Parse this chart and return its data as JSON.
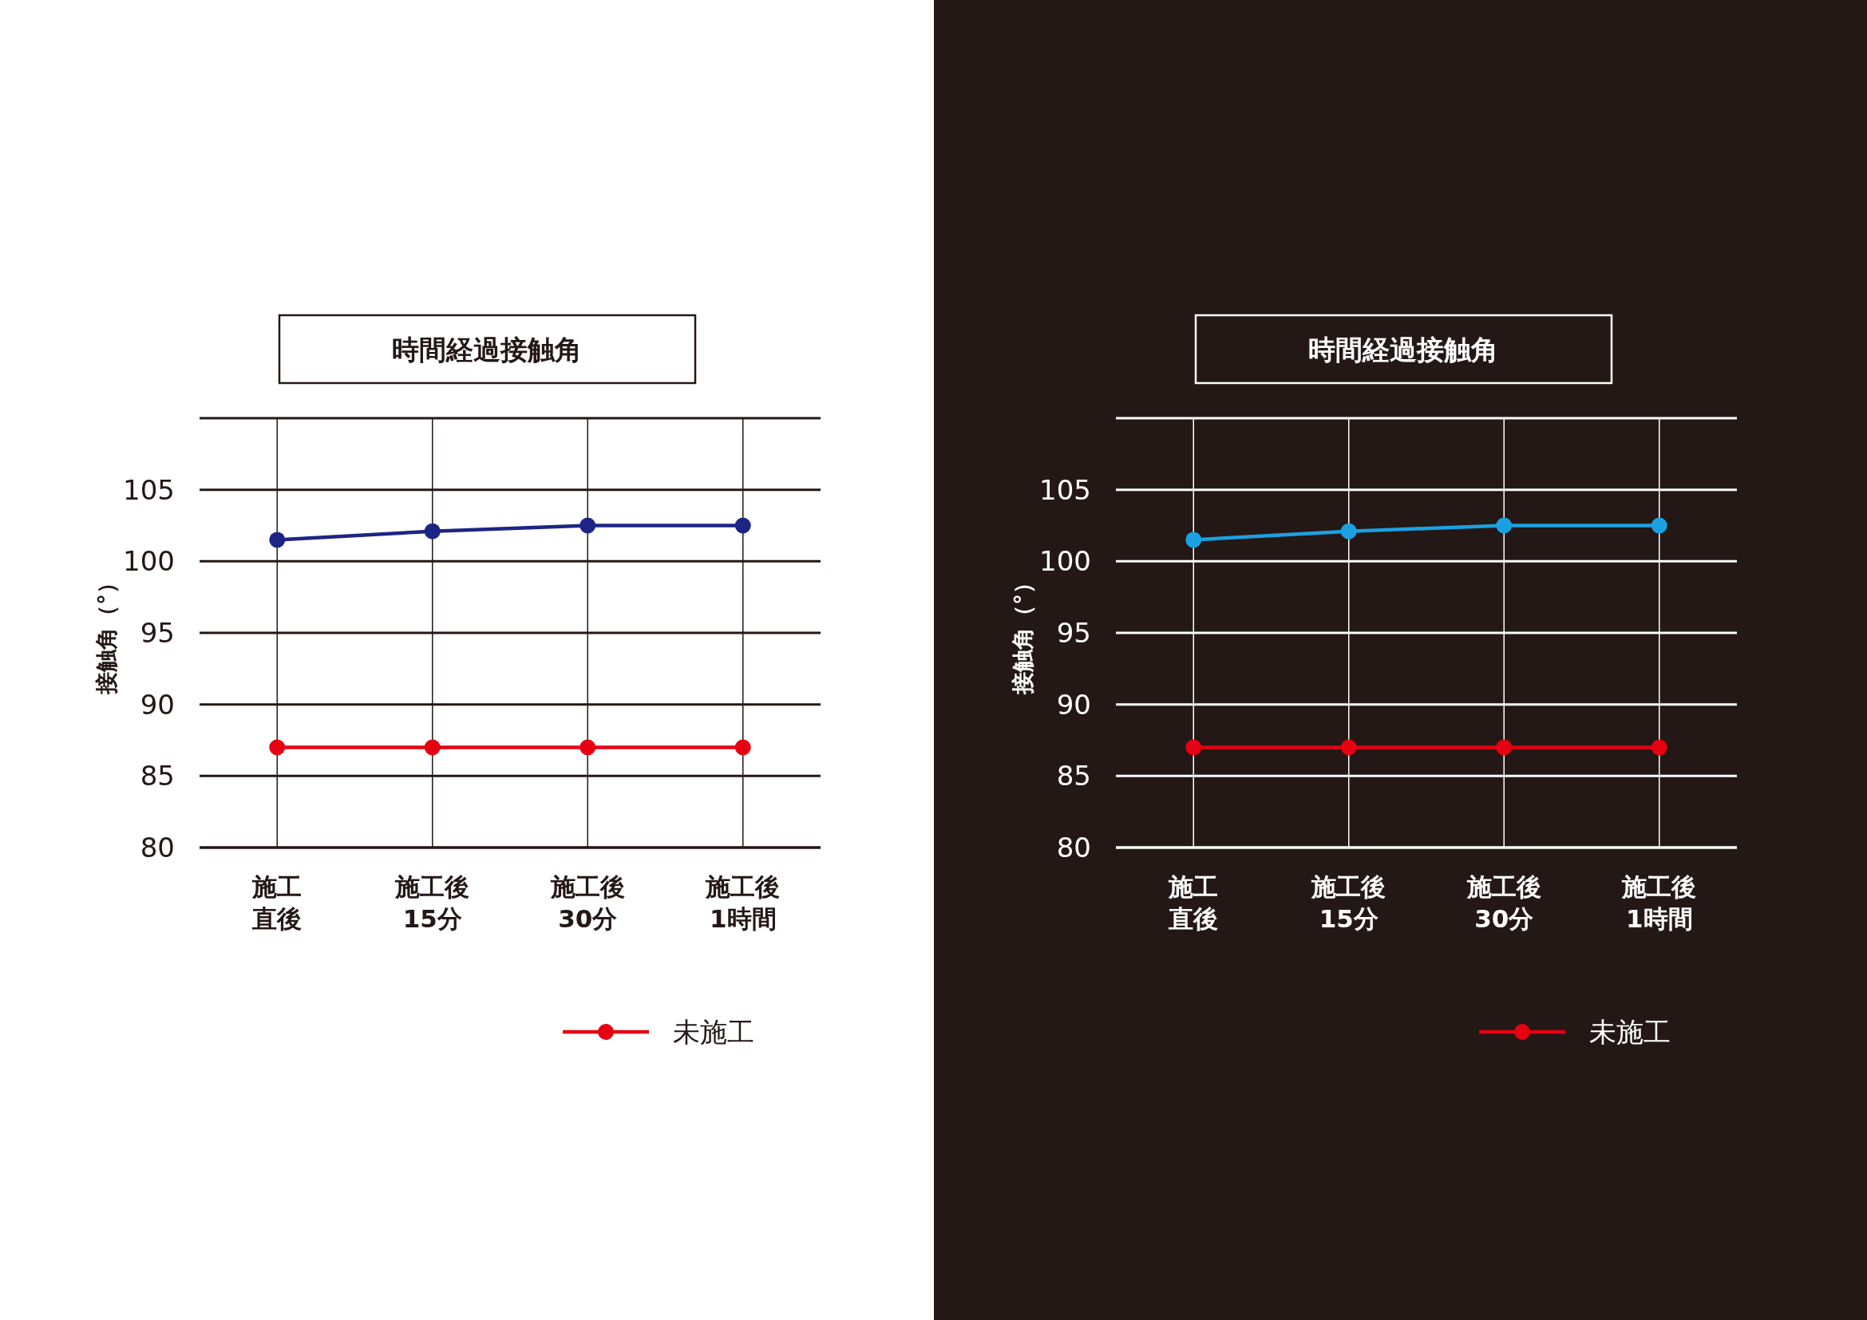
{
  "chart_data": [
    {
      "type": "line",
      "title": "時間経過接触角",
      "ylabel": "接触角（°）",
      "categories": [
        "施工直後",
        "施工後15分",
        "施工後30分",
        "施工後1時間"
      ],
      "series": [
        {
          "color": "#1d2584",
          "values": [
            101.5,
            102.1,
            102.5,
            102.5
          ]
        },
        {
          "name": "未施工",
          "color": "#e50012",
          "values": [
            87,
            87,
            87,
            87
          ]
        }
      ],
      "ylim": [
        80,
        110
      ],
      "yticks": [
        80,
        85,
        90,
        95,
        100,
        105,
        {
          "value": 110,
          "label": null
        }
      ],
      "grid": true,
      "legend": "bottom",
      "marker": "circle",
      "line_style": "solid"
    },
    {
      "type": "line",
      "title": "時間経過接触角",
      "ylabel": "接触角（°）",
      "categories": [
        "施工直後",
        "施工後15分",
        "施工後30分",
        "施工後1時間"
      ],
      "series": [
        {
          "color": "#1ba1e2",
          "values": [
            101.5,
            102.1,
            102.5,
            102.5
          ]
        },
        {
          "name": "未施工",
          "color": "#e50012",
          "values": [
            87,
            87,
            87,
            87
          ]
        }
      ],
      "ylim": [
        80,
        110
      ],
      "yticks": [
        80,
        85,
        90,
        95,
        100,
        105,
        {
          "value": 110,
          "label": null
        }
      ],
      "grid": true,
      "legend": "bottom",
      "marker": "circle",
      "line_style": "solid"
    }
  ]
}
